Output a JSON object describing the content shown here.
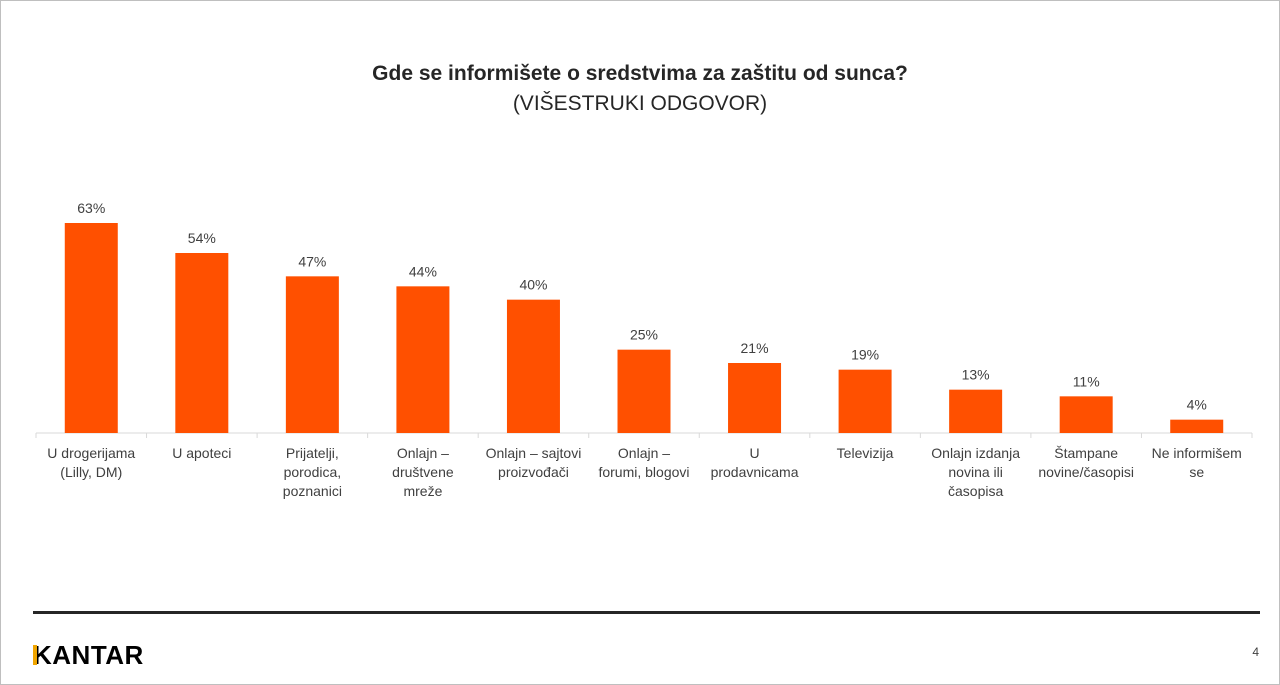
{
  "chart_data": {
    "type": "bar",
    "title": "Gde se informišete o sredstvima za zaštitu od sunca?",
    "subtitle": "(VIŠESTRUKI ODGOVOR)",
    "categories": [
      [
        "U drogerijama",
        "(Lilly, DM)"
      ],
      [
        "U apoteci"
      ],
      [
        "Prijatelji,",
        "porodica,",
        "poznanici"
      ],
      [
        "Onlajn –",
        "društvene",
        "mreže"
      ],
      [
        "Onlajn – sajtovi",
        "proizvođači"
      ],
      [
        "Onlajn –",
        "forumi, blogovi"
      ],
      [
        "U",
        "prodavnicama"
      ],
      [
        "Televizija"
      ],
      [
        "Onlajn izdanja",
        "novina ili",
        "časopisa"
      ],
      [
        "Štampane",
        "novine/časopisi"
      ],
      [
        "Ne informišem",
        "se"
      ]
    ],
    "values": [
      63,
      54,
      47,
      44,
      40,
      25,
      21,
      19,
      13,
      11,
      4
    ],
    "value_labels": [
      "63%",
      "54%",
      "47%",
      "44%",
      "40%",
      "25%",
      "21%",
      "19%",
      "13%",
      "11%",
      "4%"
    ],
    "bar_color": "#ff5000",
    "xlabel": "",
    "ylabel": "",
    "ylim": [
      0,
      63
    ],
    "grid": false,
    "legend": "none"
  },
  "footer": {
    "logo": "KANTAR",
    "page_number": "4"
  }
}
